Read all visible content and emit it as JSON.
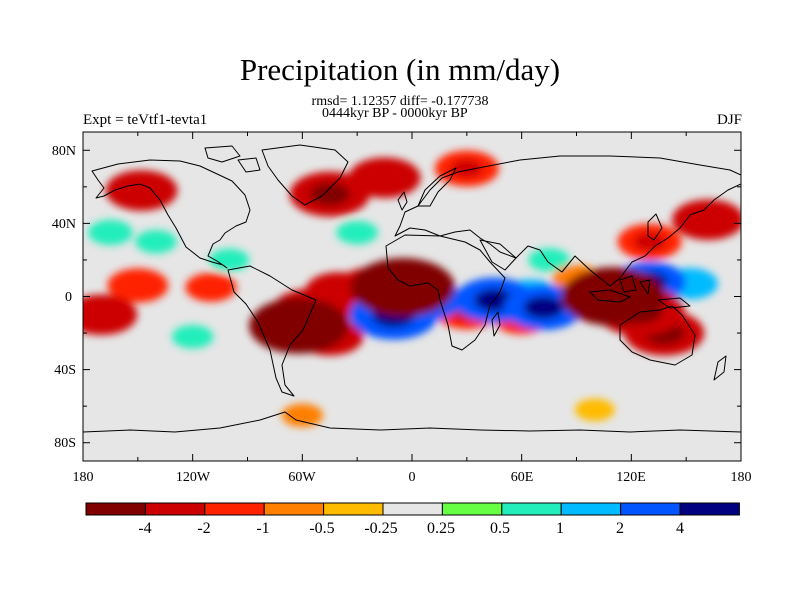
{
  "header": {
    "title": "Precipitation (in mm/day)",
    "stats": "rmsd= 1.12357 diff= -0.177738",
    "period": "0444kyr BP - 0000kyr BP",
    "experiment": "Expt = teVtf1-tevta1",
    "season": "DJF"
  },
  "axes": {
    "lat_labels": [
      "80N",
      "40N",
      "0",
      "40S",
      "80S"
    ],
    "lon_labels": [
      "180",
      "120W",
      "60W",
      "0",
      "60E",
      "120E",
      "180"
    ]
  },
  "colorbar": {
    "labels": [
      "-4",
      "-2",
      "-1",
      "-0.5",
      "-0.25",
      "0.25",
      "0.5",
      "1",
      "2",
      "4"
    ],
    "colors": [
      "#800000",
      "#cc0000",
      "#ff2200",
      "#ff7f00",
      "#ffbb00",
      "#e6e6e6",
      "#66ff44",
      "#22eebb",
      "#00bbff",
      "#0055ff",
      "#000080"
    ]
  },
  "chart_data": {
    "type": "heatmap",
    "title": "Precipitation (in mm/day)",
    "variable": "precipitation difference",
    "units": "mm/day",
    "levels": [
      -4,
      -2,
      -1,
      -0.5,
      -0.25,
      0.25,
      0.5,
      1,
      2,
      4
    ],
    "xlabel": "",
    "ylabel": "",
    "xlim": [
      -180,
      180
    ],
    "ylim": [
      -90,
      90
    ],
    "anomalies": [
      {
        "lon": -5,
        "lat": 5,
        "value": -4.5
      },
      {
        "lon": -20,
        "lat": 4,
        "value": -3
      },
      {
        "lon": -40,
        "lat": 3,
        "value": -2.2
      },
      {
        "lon": -55,
        "lat": -8,
        "value": -3
      },
      {
        "lon": -62,
        "lat": -16,
        "value": -4.2
      },
      {
        "lon": -45,
        "lat": -22,
        "value": -2.2
      },
      {
        "lon": -170,
        "lat": -10,
        "value": -2.5
      },
      {
        "lon": -150,
        "lat": 6,
        "value": -1.8
      },
      {
        "lon": -110,
        "lat": 5,
        "value": -1.2
      },
      {
        "lon": -148,
        "lat": 58,
        "value": -2.5
      },
      {
        "lon": -45,
        "lat": 56,
        "value": -3
      },
      {
        "lon": -15,
        "lat": 65,
        "value": -2.5
      },
      {
        "lon": 30,
        "lat": 70,
        "value": -2
      },
      {
        "lon": 110,
        "lat": 0,
        "value": -4.5
      },
      {
        "lon": 125,
        "lat": -8,
        "value": -3.5
      },
      {
        "lon": 138,
        "lat": -20,
        "value": -3
      },
      {
        "lon": 130,
        "lat": 30,
        "value": -2
      },
      {
        "lon": 162,
        "lat": 42,
        "value": -2.5
      },
      {
        "lon": 30,
        "lat": -8,
        "value": -2
      },
      {
        "lon": 60,
        "lat": -12,
        "value": -1.5
      },
      {
        "lon": 90,
        "lat": 10,
        "value": -1
      },
      {
        "lon": -60,
        "lat": -65,
        "value": -0.6
      },
      {
        "lon": 100,
        "lat": -62,
        "value": -0.5
      },
      {
        "lon": -10,
        "lat": -10,
        "value": 3.5
      },
      {
        "lon": 8,
        "lat": -2,
        "value": 2.5
      },
      {
        "lon": 45,
        "lat": -2,
        "value": 3
      },
      {
        "lon": 65,
        "lat": 0,
        "value": 1.8
      },
      {
        "lon": 72,
        "lat": -6,
        "value": 3
      },
      {
        "lon": 130,
        "lat": 8,
        "value": 2.5
      },
      {
        "lon": 152,
        "lat": 7,
        "value": 1.5
      },
      {
        "lon": -165,
        "lat": 35,
        "value": 0.8
      },
      {
        "lon": -140,
        "lat": 30,
        "value": 0.6
      },
      {
        "lon": -100,
        "lat": 20,
        "value": 0.5
      },
      {
        "lon": -120,
        "lat": -22,
        "value": 0.6
      },
      {
        "lon": 75,
        "lat": 20,
        "value": 0.6
      },
      {
        "lon": -30,
        "lat": 35,
        "value": 0.6
      }
    ]
  }
}
